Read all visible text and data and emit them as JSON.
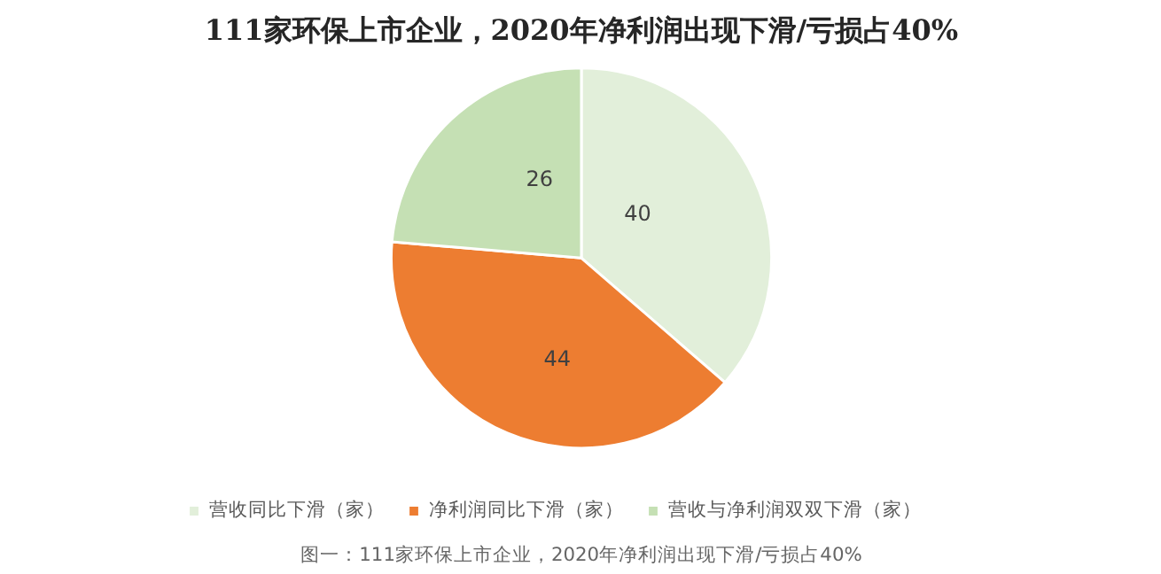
{
  "chart_data": {
    "type": "pie",
    "title": "111家环保上市企业，2020年净利润出现下滑/亏损占40%",
    "categories": [
      "营收同比下滑（家）",
      "净利润同比下滑（家）",
      "营收与净利润双双下滑（家）"
    ],
    "values": [
      40,
      44,
      26
    ],
    "colors": [
      "#e2efda",
      "#ed7d31",
      "#c5e0b4"
    ],
    "data_labels": true,
    "legend": "bottom",
    "annotations": [
      "图一：111家环保上市企业，2020年净利润出现下滑/亏损占40%"
    ]
  }
}
